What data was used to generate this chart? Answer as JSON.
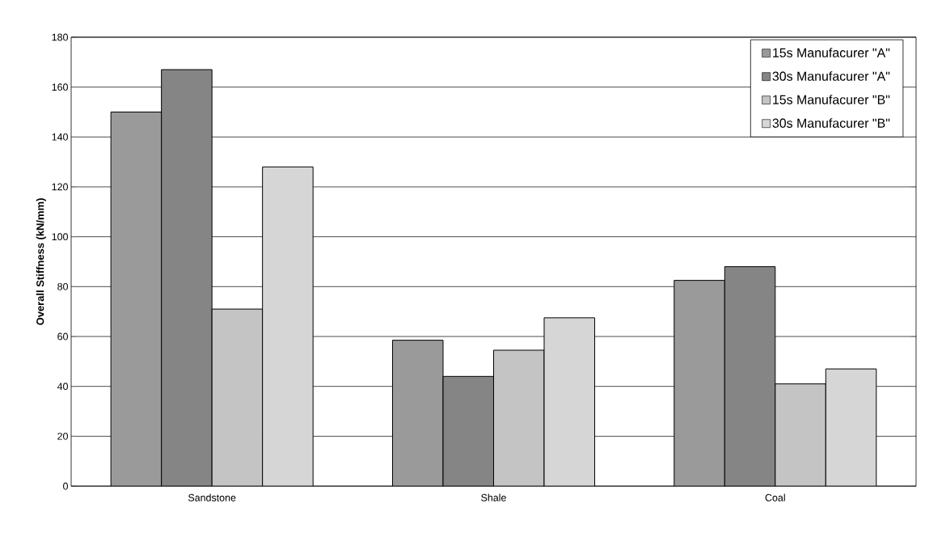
{
  "chart_data": {
    "type": "bar",
    "ylabel": "Overall Stiffness (kN/mm)",
    "categories": [
      "Sandstone",
      "Shale",
      "Coal"
    ],
    "series": [
      {
        "name": "15s Manufacurer \"A\"",
        "color": "#9a9a9a",
        "values": [
          150,
          58.5,
          82.5
        ]
      },
      {
        "name": "30s Manufacurer \"A\"",
        "color": "#858585",
        "values": [
          167,
          44,
          88
        ]
      },
      {
        "name": "15s Manufacurer \"B\"",
        "color": "#c4c4c4",
        "values": [
          71,
          54.5,
          41
        ]
      },
      {
        "name": "30s Manufacurer \"B\"",
        "color": "#d6d6d6",
        "values": [
          128,
          67.5,
          47
        ]
      }
    ],
    "ylim": [
      0,
      180
    ],
    "yticks": [
      0,
      20,
      40,
      60,
      80,
      100,
      120,
      140,
      160,
      180
    ],
    "grid": "y",
    "legend": "top right"
  }
}
